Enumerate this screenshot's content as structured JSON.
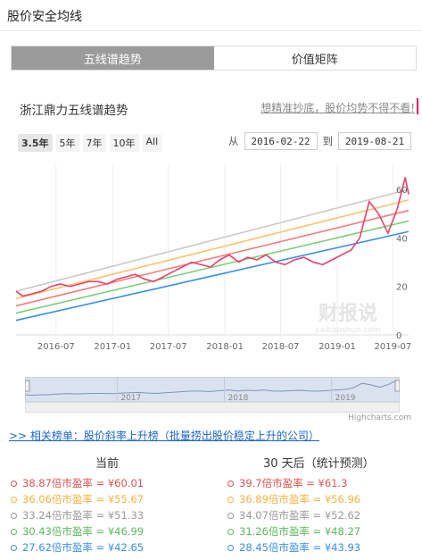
{
  "page_title": "股价安全均线",
  "tabs": [
    {
      "label": "五线谱趋势"
    },
    {
      "label": "价值矩阵"
    }
  ],
  "chart_title": "浙江鼎力五线谱趋势",
  "promo_text": "想精准抄底，股价均势不得不看!",
  "range_buttons": [
    "3.5年",
    "5年",
    "7年",
    "10年",
    "All"
  ],
  "date_from_label": "从",
  "date_from": "2016-02-22",
  "date_to_label": "到",
  "date_to": "2019-08-21",
  "watermark": {
    "main": "财报说",
    "sub": "caibaoshuo.com"
  },
  "highcharts_credit": "Highcharts.com",
  "related_link": ">> 相关榜单：股价斜率上升榜（批量捞出股价稳定上升的公司）",
  "current_header": "当前",
  "forecast_header": "30 天后（统计预测）",
  "current_values": [
    {
      "text": "38.87倍市盈率 = ¥60.01",
      "color": "#d9534f"
    },
    {
      "text": "36.06倍市盈率 = ¥55.67",
      "color": "#f5b342"
    },
    {
      "text": "33.24倍市盈率 = ¥51.33",
      "color": "#999999"
    },
    {
      "text": "30.43倍市盈率 = ¥46.99",
      "color": "#5cb85c"
    },
    {
      "text": "27.62倍市盈率 = ¥42.65",
      "color": "#3a8ee6"
    }
  ],
  "forecast_values": [
    {
      "text": "39.7倍市盈率 = ¥61.3",
      "color": "#d9534f"
    },
    {
      "text": "36.89倍市盈率 = ¥56.96",
      "color": "#f5b342"
    },
    {
      "text": "34.07倍市盈率 = ¥52.62",
      "color": "#999999"
    },
    {
      "text": "31.26倍市盈率 = ¥48.27",
      "color": "#5cb85c"
    },
    {
      "text": "28.45倍市盈率 = ¥43.93",
      "color": "#3a8ee6"
    }
  ],
  "chart_data": {
    "type": "line",
    "ylim": [
      0,
      70
    ],
    "yticks": [
      0,
      20,
      40,
      60
    ],
    "xlim": [
      "2016-02-22",
      "2019-08-21"
    ],
    "xticks": [
      "2016-07",
      "2017-01",
      "2017-07",
      "2018-01",
      "2018-07",
      "2019-01",
      "2019-07"
    ],
    "navigator_ticks": [
      "2017",
      "2018",
      "2019"
    ],
    "bands": [
      {
        "color": "#c9c9c9",
        "start": 18,
        "end": 60.01
      },
      {
        "color": "#f5c26b",
        "start": 15,
        "end": 55.67
      },
      {
        "color": "#f08080",
        "start": 12,
        "end": 51.33
      },
      {
        "color": "#7ccf7c",
        "start": 9,
        "end": 46.99
      },
      {
        "color": "#3a8ee6",
        "start": 6,
        "end": 42.65
      }
    ],
    "price": {
      "color": "#e8416b",
      "x": [
        "2016-02-22",
        "2016-03-15",
        "2016-04-15",
        "2016-05-15",
        "2016-06-15",
        "2016-07-15",
        "2016-08-15",
        "2016-09-15",
        "2016-10-15",
        "2016-11-15",
        "2016-12-15",
        "2017-01-15",
        "2017-02-15",
        "2017-03-15",
        "2017-04-15",
        "2017-05-15",
        "2017-06-15",
        "2017-07-15",
        "2017-08-15",
        "2017-09-15",
        "2017-10-15",
        "2017-11-15",
        "2017-12-15",
        "2018-01-15",
        "2018-02-15",
        "2018-03-15",
        "2018-04-15",
        "2018-05-15",
        "2018-06-15",
        "2018-07-15",
        "2018-08-15",
        "2018-09-15",
        "2018-10-15",
        "2018-11-15",
        "2018-12-15",
        "2019-01-15",
        "2019-02-15",
        "2019-03-15",
        "2019-04-15",
        "2019-05-15",
        "2019-06-15",
        "2019-07-15",
        "2019-08-10",
        "2019-08-21"
      ],
      "y": [
        18,
        16,
        17,
        18,
        20,
        21,
        20,
        21,
        22,
        22,
        21,
        23,
        24,
        25,
        23,
        22,
        24,
        26,
        28,
        30,
        29,
        28,
        31,
        33,
        30,
        32,
        31,
        33,
        30,
        29,
        31,
        32,
        30,
        29,
        31,
        33,
        35,
        40,
        55,
        50,
        42,
        52,
        65,
        58
      ]
    }
  }
}
